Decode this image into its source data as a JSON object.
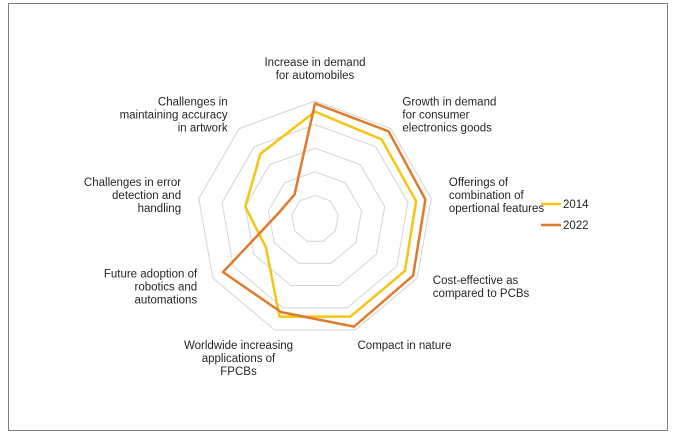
{
  "chart_data": {
    "type": "radar",
    "title": "",
    "categories": [
      "Increase in demand for automobiles",
      "Growth in demand for consumer electronics goods",
      "Offerings of combination of opertional features",
      "Cost-effective as compared to PCBs",
      "Compact in nature",
      "Worldwide increasing applications of FPCBs",
      "Future adoption of robotics and automations",
      "Challenges in error detection and handling",
      "Challenges in maintaining accuracy in artwork"
    ],
    "category_lines": [
      [
        "Increase in demand",
        "for automobiles"
      ],
      [
        "Growth in demand",
        "for consumer",
        "electronics goods"
      ],
      [
        "Offerings of",
        "combination of",
        "opertional features"
      ],
      [
        "Cost-effective as",
        "compared to PCBs"
      ],
      [
        "Compact in nature"
      ],
      [
        "Worldwide increasing",
        "applications of",
        "FPCBs"
      ],
      [
        "Future adoption of",
        "robotics and",
        "automations"
      ],
      [
        "Challenges in error",
        "detection and",
        "handling"
      ],
      [
        "Challenges in",
        "maintaining accuracy",
        "in artwork"
      ]
    ],
    "rlim": [
      0,
      5
    ],
    "rings": 5,
    "grid": true,
    "legend_position": "right",
    "series": [
      {
        "name": "2014",
        "color": "#f5c414",
        "values": [
          4.55,
          4.4,
          4.35,
          4.4,
          4.4,
          4.4,
          2.4,
          3.0,
          3.6
        ]
      },
      {
        "name": "2022",
        "color": "#e07b2e",
        "values": [
          4.9,
          4.85,
          4.75,
          4.8,
          4.85,
          4.2,
          4.5,
          1.55,
          1.35
        ]
      }
    ]
  }
}
